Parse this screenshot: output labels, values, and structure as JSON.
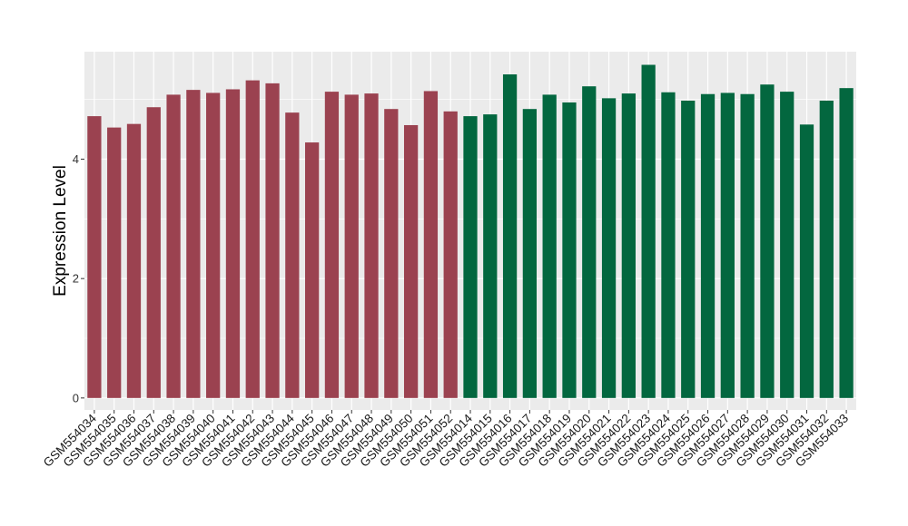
{
  "chart_data": {
    "type": "bar",
    "title": "",
    "xlabel": "",
    "ylabel": "Expression Level",
    "ylim": [
      -0.2,
      5.8
    ],
    "yticks": [
      0,
      2,
      4
    ],
    "grid": true,
    "categories": [
      "GSM554034",
      "GSM554035",
      "GSM554036",
      "GSM554037",
      "GSM554038",
      "GSM554039",
      "GSM554040",
      "GSM554041",
      "GSM554042",
      "GSM554043",
      "GSM554044",
      "GSM554045",
      "GSM554046",
      "GSM554047",
      "GSM554048",
      "GSM554049",
      "GSM554050",
      "GSM554051",
      "GSM554052",
      "GSM554014",
      "GSM554015",
      "GSM554016",
      "GSM554017",
      "GSM554018",
      "GSM554019",
      "GSM554020",
      "GSM554021",
      "GSM554022",
      "GSM554023",
      "GSM554024",
      "GSM554025",
      "GSM554026",
      "GSM554027",
      "GSM554028",
      "GSM554029",
      "GSM554030",
      "GSM554031",
      "GSM554032",
      "GSM554033"
    ],
    "values": [
      4.72,
      4.53,
      4.59,
      4.87,
      5.08,
      5.16,
      5.11,
      5.17,
      5.32,
      5.27,
      4.78,
      4.28,
      5.13,
      5.08,
      5.1,
      4.84,
      4.57,
      5.14,
      4.8,
      4.72,
      4.75,
      5.42,
      4.84,
      5.08,
      4.95,
      5.22,
      5.02,
      5.1,
      5.58,
      5.12,
      4.98,
      5.09,
      5.11,
      5.09,
      5.25,
      5.13,
      4.58,
      4.98,
      5.19
    ],
    "group_sizes": [
      19,
      20
    ],
    "group_colors": [
      "#9B4250",
      "#03673F"
    ],
    "panel_background": "#EBEBEB",
    "grid_color": "#FFFFFF"
  }
}
